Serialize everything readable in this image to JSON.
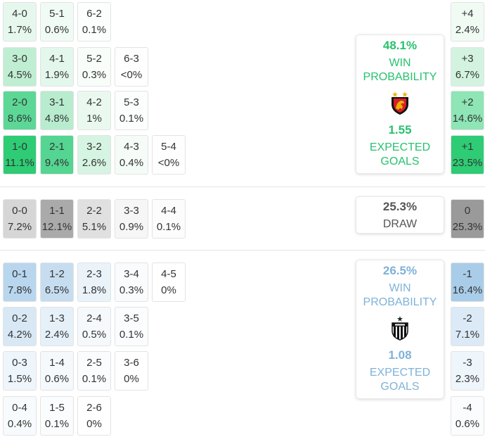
{
  "colors": {
    "home_accent": "#28c16f",
    "away_accent": "#7fb2d8",
    "draw_text": "#555555"
  },
  "home": {
    "win_pct": "48.1%",
    "win_label": "WIN PROBABILITY",
    "xg": "1.55",
    "xg_label": "EXPECTED GOALS",
    "crest_icon": "shield-crest-icon"
  },
  "draw": {
    "pct": "25.3%",
    "label": "DRAW"
  },
  "away": {
    "win_pct": "26.5%",
    "win_label": "WIN PROBABILITY",
    "xg": "1.08",
    "xg_label": "EXPECTED GOALS",
    "crest_icon": "striped-crest-icon"
  },
  "home_scores": [
    {
      "score": "4-0",
      "pct": "1.7%"
    },
    {
      "score": "5-1",
      "pct": "0.6%"
    },
    {
      "score": "6-2",
      "pct": "0.1%"
    },
    {
      "score": "3-0",
      "pct": "4.5%"
    },
    {
      "score": "4-1",
      "pct": "1.9%"
    },
    {
      "score": "5-2",
      "pct": "0.3%"
    },
    {
      "score": "6-3",
      "pct": "<0%"
    },
    {
      "score": "2-0",
      "pct": "8.6%"
    },
    {
      "score": "3-1",
      "pct": "4.8%"
    },
    {
      "score": "4-2",
      "pct": "1%"
    },
    {
      "score": "5-3",
      "pct": "0.1%"
    },
    {
      "score": "1-0",
      "pct": "11.1%"
    },
    {
      "score": "2-1",
      "pct": "9.4%"
    },
    {
      "score": "3-2",
      "pct": "2.6%"
    },
    {
      "score": "4-3",
      "pct": "0.4%"
    },
    {
      "score": "5-4",
      "pct": "<0%"
    }
  ],
  "draw_scores": [
    {
      "score": "0-0",
      "pct": "7.2%"
    },
    {
      "score": "1-1",
      "pct": "12.1%"
    },
    {
      "score": "2-2",
      "pct": "5.1%"
    },
    {
      "score": "3-3",
      "pct": "0.9%"
    },
    {
      "score": "4-4",
      "pct": "0.1%"
    }
  ],
  "away_scores": [
    {
      "score": "0-1",
      "pct": "7.8%"
    },
    {
      "score": "1-2",
      "pct": "6.5%"
    },
    {
      "score": "2-3",
      "pct": "1.8%"
    },
    {
      "score": "3-4",
      "pct": "0.3%"
    },
    {
      "score": "4-5",
      "pct": "0%"
    },
    {
      "score": "0-2",
      "pct": "4.2%"
    },
    {
      "score": "1-3",
      "pct": "2.4%"
    },
    {
      "score": "2-4",
      "pct": "0.5%"
    },
    {
      "score": "3-5",
      "pct": "0.1%"
    },
    {
      "score": "0-3",
      "pct": "1.5%"
    },
    {
      "score": "1-4",
      "pct": "0.6%"
    },
    {
      "score": "2-5",
      "pct": "0.1%"
    },
    {
      "score": "3-6",
      "pct": "0%"
    },
    {
      "score": "0-4",
      "pct": "0.4%"
    },
    {
      "score": "1-5",
      "pct": "0.1%"
    },
    {
      "score": "2-6",
      "pct": "0%"
    }
  ],
  "margins": [
    {
      "margin": "+4",
      "pct": "2.4%"
    },
    {
      "margin": "+3",
      "pct": "6.7%"
    },
    {
      "margin": "+2",
      "pct": "14.6%"
    },
    {
      "margin": "+1",
      "pct": "23.5%"
    },
    {
      "margin": "0",
      "pct": "25.3%"
    },
    {
      "margin": "-1",
      "pct": "16.4%"
    },
    {
      "margin": "-2",
      "pct": "7.1%"
    },
    {
      "margin": "-3",
      "pct": "2.3%"
    },
    {
      "margin": "-4",
      "pct": "0.6%"
    }
  ]
}
